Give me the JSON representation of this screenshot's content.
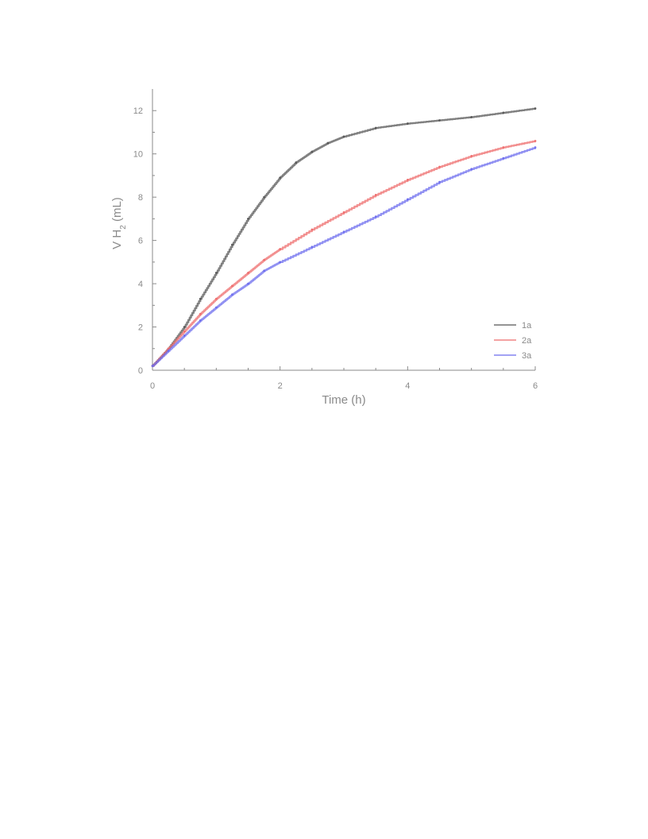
{
  "chart_data": {
    "type": "line",
    "xlabel": "Time (h)",
    "ylabel_main": "V H",
    "ylabel_sub": "2",
    "ylabel_unit": " (mL)",
    "xlim": [
      0,
      6
    ],
    "ylim": [
      0,
      13
    ],
    "xticks": [
      0,
      2,
      4,
      6
    ],
    "yticks": [
      0,
      2,
      4,
      6,
      8,
      10,
      12
    ],
    "grid": false,
    "legend_position": "bottom-right",
    "series": [
      {
        "name": "1a",
        "color": "#555555",
        "x": [
          0,
          0.25,
          0.5,
          0.75,
          1.0,
          1.25,
          1.5,
          1.75,
          2.0,
          2.25,
          2.5,
          2.75,
          3.0,
          3.5,
          4.0,
          4.5,
          5.0,
          5.5,
          6.0
        ],
        "y": [
          0.2,
          1.0,
          2.0,
          3.3,
          4.5,
          5.8,
          7.0,
          8.0,
          8.9,
          9.6,
          10.1,
          10.5,
          10.8,
          11.2,
          11.4,
          11.55,
          11.7,
          11.9,
          12.1
        ]
      },
      {
        "name": "2a",
        "color": "#ee6b6b",
        "x": [
          0,
          0.25,
          0.5,
          0.75,
          1.0,
          1.25,
          1.5,
          1.75,
          2.0,
          2.5,
          3.0,
          3.5,
          4.0,
          4.5,
          5.0,
          5.5,
          6.0
        ],
        "y": [
          0.2,
          1.0,
          1.8,
          2.6,
          3.3,
          3.9,
          4.5,
          5.1,
          5.6,
          6.5,
          7.3,
          8.1,
          8.8,
          9.4,
          9.9,
          10.3,
          10.6
        ]
      },
      {
        "name": "3a",
        "color": "#6b6bee",
        "x": [
          0,
          0.25,
          0.5,
          0.75,
          1.0,
          1.25,
          1.5,
          1.75,
          2.0,
          2.5,
          3.0,
          3.5,
          4.0,
          4.5,
          5.0,
          5.5,
          6.0
        ],
        "y": [
          0.2,
          0.9,
          1.6,
          2.3,
          2.9,
          3.5,
          4.0,
          4.6,
          5.0,
          5.7,
          6.4,
          7.1,
          7.9,
          8.7,
          9.3,
          9.8,
          10.3
        ]
      }
    ]
  }
}
